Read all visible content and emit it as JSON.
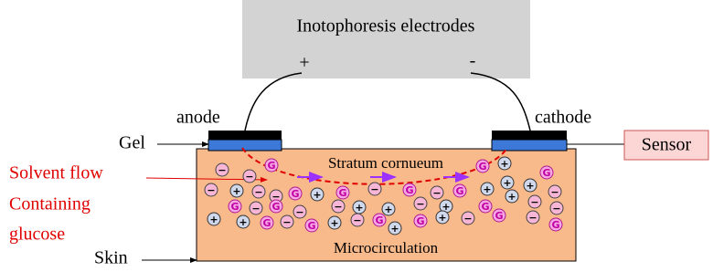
{
  "title": "Inotophoresis electrodes",
  "plus": "+",
  "minus": "-",
  "anode": "anode",
  "cathode": "cathode",
  "gel": "Gel",
  "sensor": "Sensor",
  "solvent": [
    "Solvent flow",
    "Containing",
    "glucose"
  ],
  "skin": "Skin",
  "stratum": "Stratum cornueum",
  "micro": "Microcirculation",
  "ion_labels": {
    "glucose": "G",
    "positive": "+",
    "negative": "−"
  }
}
